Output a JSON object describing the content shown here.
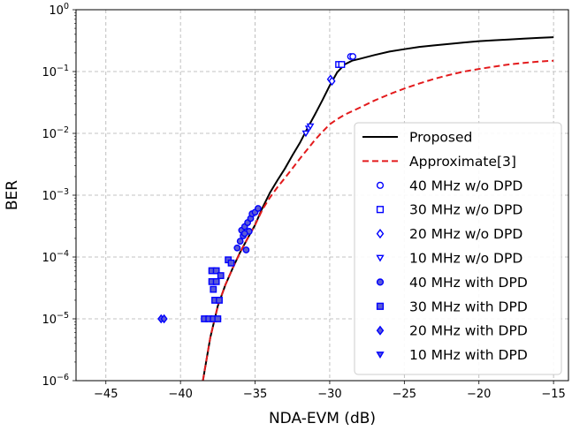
{
  "chart_data": {
    "type": "line",
    "title": "",
    "xlabel": "NDA-EVM (dB)",
    "ylabel": "BER",
    "xlim": [
      -47,
      -14
    ],
    "ylim_log10": [
      -6,
      0
    ],
    "y_scale": "log",
    "grid": true,
    "legend_position": "lower-right",
    "x_ticks": [
      -45,
      -40,
      -35,
      -30,
      -25,
      -20,
      -15
    ],
    "x_tick_labels": [
      "−45",
      "−40",
      "−35",
      "−30",
      "−25",
      "−20",
      "−15"
    ],
    "y_ticks_log10": [
      0,
      -1,
      -2,
      -3,
      -4,
      -5,
      -6
    ],
    "y_tick_base": "10",
    "y_tick_exponents": [
      "0",
      "−1",
      "−2",
      "−3",
      "−4",
      "−5",
      "−6"
    ],
    "lines": [
      {
        "name": "Proposed",
        "color": "#000000",
        "dash": "solid",
        "points": [
          [
            -38.5,
            1e-06
          ],
          [
            -38.0,
            5e-06
          ],
          [
            -37.5,
            1.6e-05
          ],
          [
            -37.0,
            3.5e-05
          ],
          [
            -36.5,
            6.6e-05
          ],
          [
            -36.0,
            0.00012
          ],
          [
            -35.5,
            0.0002
          ],
          [
            -35.0,
            0.00033
          ],
          [
            -34.5,
            0.00063
          ],
          [
            -34.0,
            0.0011
          ],
          [
            -33.5,
            0.00175
          ],
          [
            -33.0,
            0.0027
          ],
          [
            -32.5,
            0.0044
          ],
          [
            -32.0,
            0.007
          ],
          [
            -31.5,
            0.012
          ],
          [
            -31.0,
            0.02
          ],
          [
            -30.5,
            0.034
          ],
          [
            -30.0,
            0.059
          ],
          [
            -29.5,
            0.097
          ],
          [
            -29.0,
            0.13
          ],
          [
            -28.5,
            0.15
          ],
          [
            -28.0,
            0.16
          ],
          [
            -27.0,
            0.185
          ],
          [
            -26.0,
            0.21
          ],
          [
            -25.0,
            0.23
          ],
          [
            -24.0,
            0.25
          ],
          [
            -23.0,
            0.265
          ],
          [
            -22.0,
            0.28
          ],
          [
            -21.0,
            0.295
          ],
          [
            -20.0,
            0.31
          ],
          [
            -19.0,
            0.32
          ],
          [
            -18.0,
            0.33
          ],
          [
            -17.0,
            0.34
          ],
          [
            -16.0,
            0.35
          ],
          [
            -15.0,
            0.36
          ]
        ]
      },
      {
        "name": "Approximate[3]",
        "color": "#e31a1c",
        "dash": "dashed",
        "points": [
          [
            -38.5,
            1e-06
          ],
          [
            -38.0,
            5e-06
          ],
          [
            -37.5,
            1.6e-05
          ],
          [
            -37.0,
            3.5e-05
          ],
          [
            -36.5,
            6.6e-05
          ],
          [
            -36.0,
            0.00012
          ],
          [
            -35.5,
            0.0002
          ],
          [
            -35.0,
            0.00033
          ],
          [
            -34.5,
            0.00059
          ],
          [
            -34.0,
            0.00092
          ],
          [
            -33.5,
            0.00135
          ],
          [
            -33.0,
            0.0019
          ],
          [
            -32.5,
            0.0027
          ],
          [
            -32.0,
            0.0039
          ],
          [
            -31.5,
            0.0055
          ],
          [
            -31.0,
            0.0078
          ],
          [
            -30.5,
            0.0105
          ],
          [
            -30.0,
            0.014
          ],
          [
            -29.5,
            0.017
          ],
          [
            -29.0,
            0.02
          ],
          [
            -28.0,
            0.026
          ],
          [
            -27.0,
            0.034
          ],
          [
            -26.0,
            0.043
          ],
          [
            -25.0,
            0.053
          ],
          [
            -24.0,
            0.064
          ],
          [
            -23.0,
            0.076
          ],
          [
            -22.0,
            0.088
          ],
          [
            -21.0,
            0.1
          ],
          [
            -20.0,
            0.11
          ],
          [
            -19.0,
            0.12
          ],
          [
            -18.0,
            0.13
          ],
          [
            -17.0,
            0.138
          ],
          [
            -16.0,
            0.145
          ],
          [
            -15.0,
            0.15
          ]
        ]
      }
    ],
    "scatter_series": [
      {
        "name": "40 MHz w/o DPD",
        "marker": "circle",
        "filled": false,
        "points": [
          [
            -28.6,
            0.175
          ],
          [
            -28.45,
            0.175
          ]
        ]
      },
      {
        "name": "30 MHz w/o DPD",
        "marker": "square",
        "filled": false,
        "points": [
          [
            -29.4,
            0.13
          ],
          [
            -29.2,
            0.13
          ]
        ]
      },
      {
        "name": "20 MHz w/o DPD",
        "marker": "diamond",
        "filled": false,
        "points": [
          [
            -29.95,
            0.075
          ],
          [
            -29.85,
            0.07
          ]
        ]
      },
      {
        "name": "10 MHz w/o DPD",
        "marker": "triangle-down",
        "filled": false,
        "points": [
          [
            -31.6,
            0.01
          ],
          [
            -31.4,
            0.012
          ],
          [
            -31.3,
            0.013
          ]
        ]
      },
      {
        "name": "40 MHz with DPD",
        "marker": "circle",
        "filled": true,
        "points": [
          [
            -36.2,
            0.00014
          ],
          [
            -36.0,
            0.00018
          ],
          [
            -35.8,
            0.00022
          ],
          [
            -35.6,
            0.00013
          ],
          [
            -35.9,
            0.00027
          ],
          [
            -35.7,
            0.00031
          ],
          [
            -35.5,
            0.00036
          ],
          [
            -35.3,
            0.00042
          ],
          [
            -35.2,
            0.0005
          ],
          [
            -35.0,
            0.00053
          ],
          [
            -34.8,
            0.00061
          ],
          [
            -35.4,
            0.00026
          ],
          [
            -35.7,
            0.00024
          ]
        ]
      },
      {
        "name": "30 MHz with DPD",
        "marker": "square",
        "filled": true,
        "points": [
          [
            -38.4,
            1e-05
          ],
          [
            -38.1,
            1e-05
          ],
          [
            -37.8,
            1e-05
          ],
          [
            -37.5,
            1e-05
          ],
          [
            -37.7,
            2e-05
          ],
          [
            -37.4,
            2e-05
          ],
          [
            -37.8,
            3e-05
          ],
          [
            -37.9,
            4e-05
          ],
          [
            -37.6,
            4e-05
          ],
          [
            -37.9,
            6e-05
          ],
          [
            -37.6,
            6e-05
          ],
          [
            -37.3,
            5e-05
          ],
          [
            -36.8,
            9e-05
          ],
          [
            -36.6,
            8e-05
          ]
        ]
      },
      {
        "name": "20 MHz with DPD",
        "marker": "diamond",
        "filled": true,
        "points": [
          [
            -41.3,
            1e-05
          ],
          [
            -41.1,
            1e-05
          ]
        ]
      },
      {
        "name": "10 MHz with DPD",
        "marker": "triangle-down",
        "filled": true,
        "points": []
      }
    ],
    "marker_color": "#0000ff",
    "marker_fill": "#5b5bd6"
  }
}
